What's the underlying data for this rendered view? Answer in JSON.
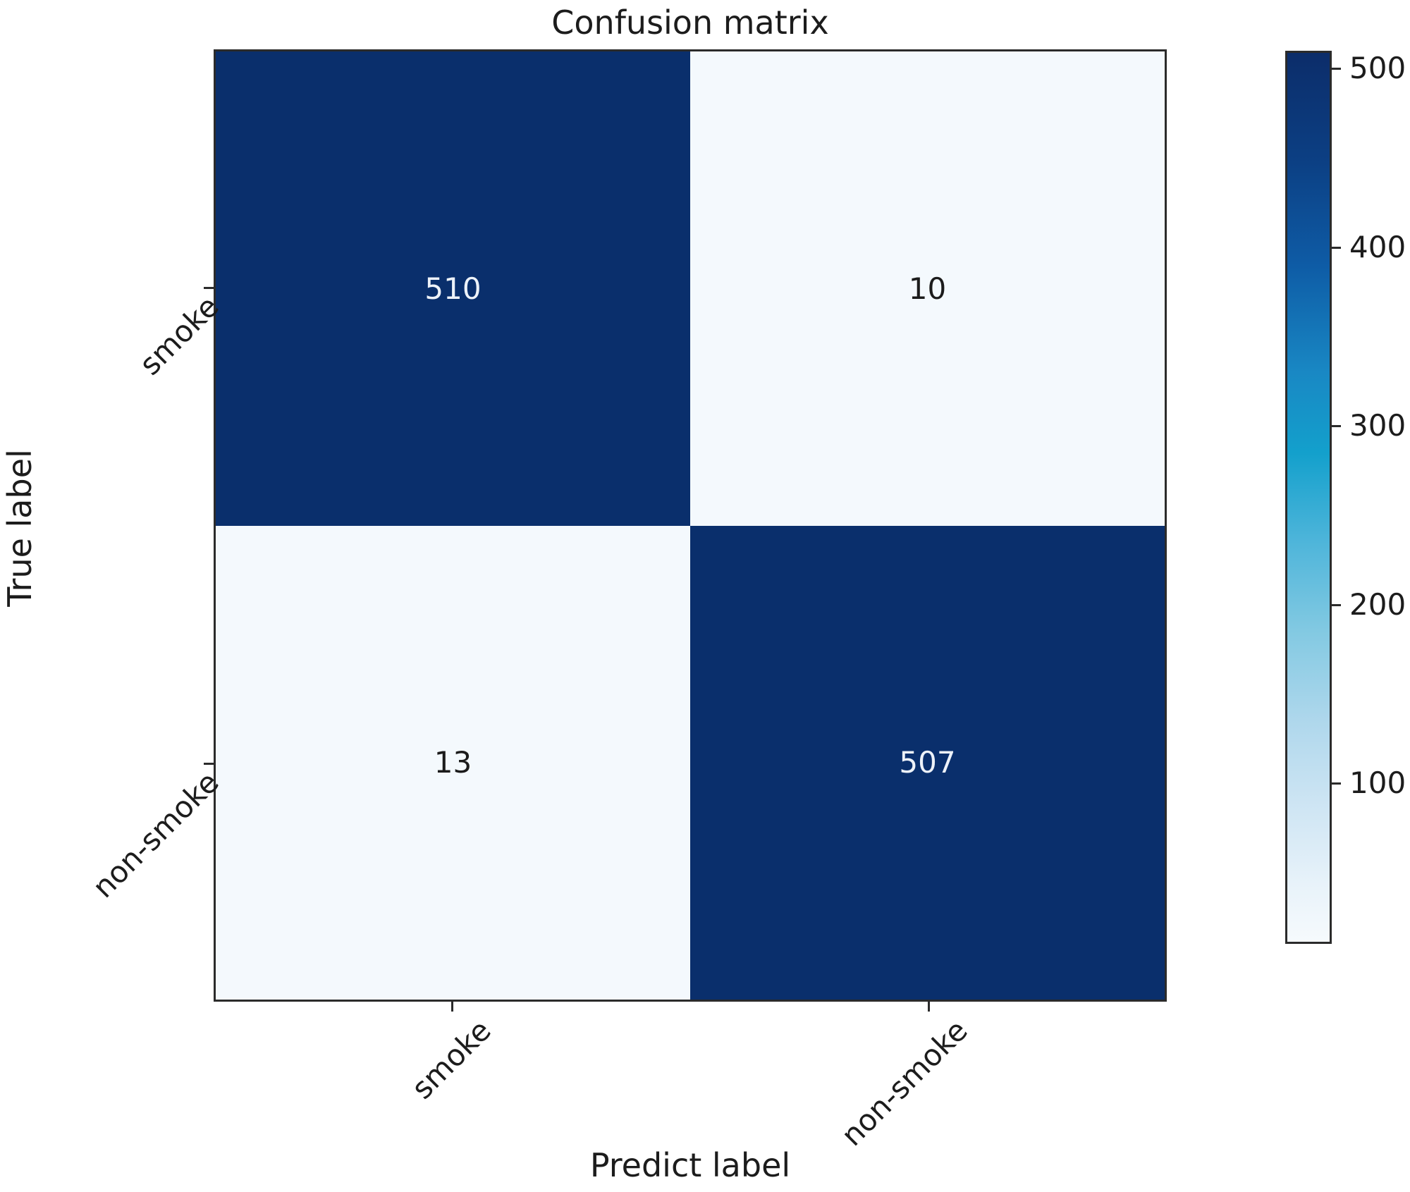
{
  "title": "Confusion matrix",
  "axes": {
    "x_label": "Predict label",
    "y_label": "True label"
  },
  "chart_data": {
    "type": "heatmap",
    "title": "Confusion matrix",
    "xlabel": "Predict label",
    "ylabel": "True label",
    "x_categories": [
      "smoke",
      "non-smoke"
    ],
    "y_categories": [
      "smoke",
      "non-smoke"
    ],
    "matrix": [
      [
        510,
        10
      ],
      [
        13,
        507
      ]
    ],
    "colormap": "Blues",
    "grid": false,
    "legend_position": "right-colorbar",
    "colorbar": {
      "ticks": [
        500,
        400,
        300,
        200,
        100
      ],
      "vmin": 10,
      "vmax": 510
    }
  },
  "colors": {
    "cell_dark": "#0a2f6c",
    "cell_light": "#f4f9fd",
    "text_on_dark": "#edf2f9",
    "text_on_light": "#1b1b1b",
    "spine": "#2b2b2b"
  }
}
